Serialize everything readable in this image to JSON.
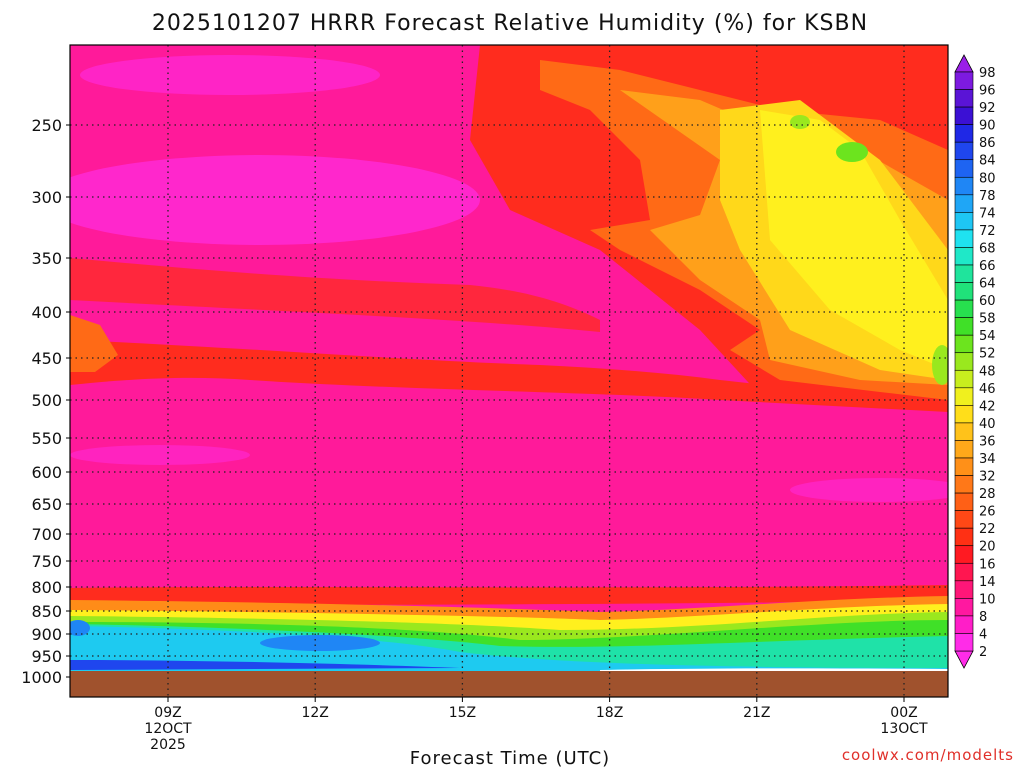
{
  "chart_data": {
    "type": "heatmap",
    "title": "2025101207 HRRR Forecast Relative Humidity (%) for KSBN",
    "xlabel": "Forecast Time (UTC)",
    "ylabel": "",
    "credit": "coolwx.com/modelts",
    "y_ticks": [
      "250",
      "300",
      "350",
      "400",
      "450",
      "500",
      "550",
      "600",
      "650",
      "700",
      "750",
      "800",
      "850",
      "900",
      "950",
      "1000"
    ],
    "x_ticks": [
      {
        "lines": [
          "09Z",
          "12OCT",
          "2025"
        ]
      },
      {
        "lines": [
          "12Z"
        ]
      },
      {
        "lines": [
          "15Z"
        ]
      },
      {
        "lines": [
          "18Z"
        ]
      },
      {
        "lines": [
          "21Z"
        ]
      },
      {
        "lines": [
          "00Z",
          "13OCT"
        ]
      }
    ],
    "colorbar": {
      "labels": [
        "98",
        "96",
        "92",
        "90",
        "86",
        "84",
        "80",
        "78",
        "74",
        "72",
        "68",
        "66",
        "64",
        "60",
        "58",
        "54",
        "52",
        "48",
        "46",
        "42",
        "40",
        "36",
        "34",
        "32",
        "28",
        "26",
        "22",
        "20",
        "16",
        "14",
        "10",
        "8",
        "4",
        "2"
      ],
      "colors": [
        "#9a1ee8",
        "#7d1ae0",
        "#5a14d6",
        "#3b10d4",
        "#1f28e6",
        "#1f46ee",
        "#1e64f2",
        "#1f86f5",
        "#1fa6f6",
        "#1ec6f4",
        "#1fe2f0",
        "#1fe8c8",
        "#1fe49c",
        "#20e27a",
        "#27e04e",
        "#40e028",
        "#6ce41e",
        "#9ae81e",
        "#c8ee1e",
        "#f0f01e",
        "#ffde1a",
        "#ffc21a",
        "#ffa81a",
        "#ff9018",
        "#ff7818",
        "#ff6016",
        "#ff4816",
        "#ff3014",
        "#ff1a22",
        "#ff1650",
        "#ff1678",
        "#ff18a0",
        "#ff1ec8",
        "#ff2ce8"
      ]
    },
    "fields": {
      "surface_color": "#a0522d",
      "dominant_rh_percent": "2-10",
      "moist_layer_hpa": "850-975",
      "moist_layer_rh_percent": "40-92",
      "upper_moist_region_after": "18Z",
      "upper_moist_rh_percent": "20-52"
    }
  }
}
